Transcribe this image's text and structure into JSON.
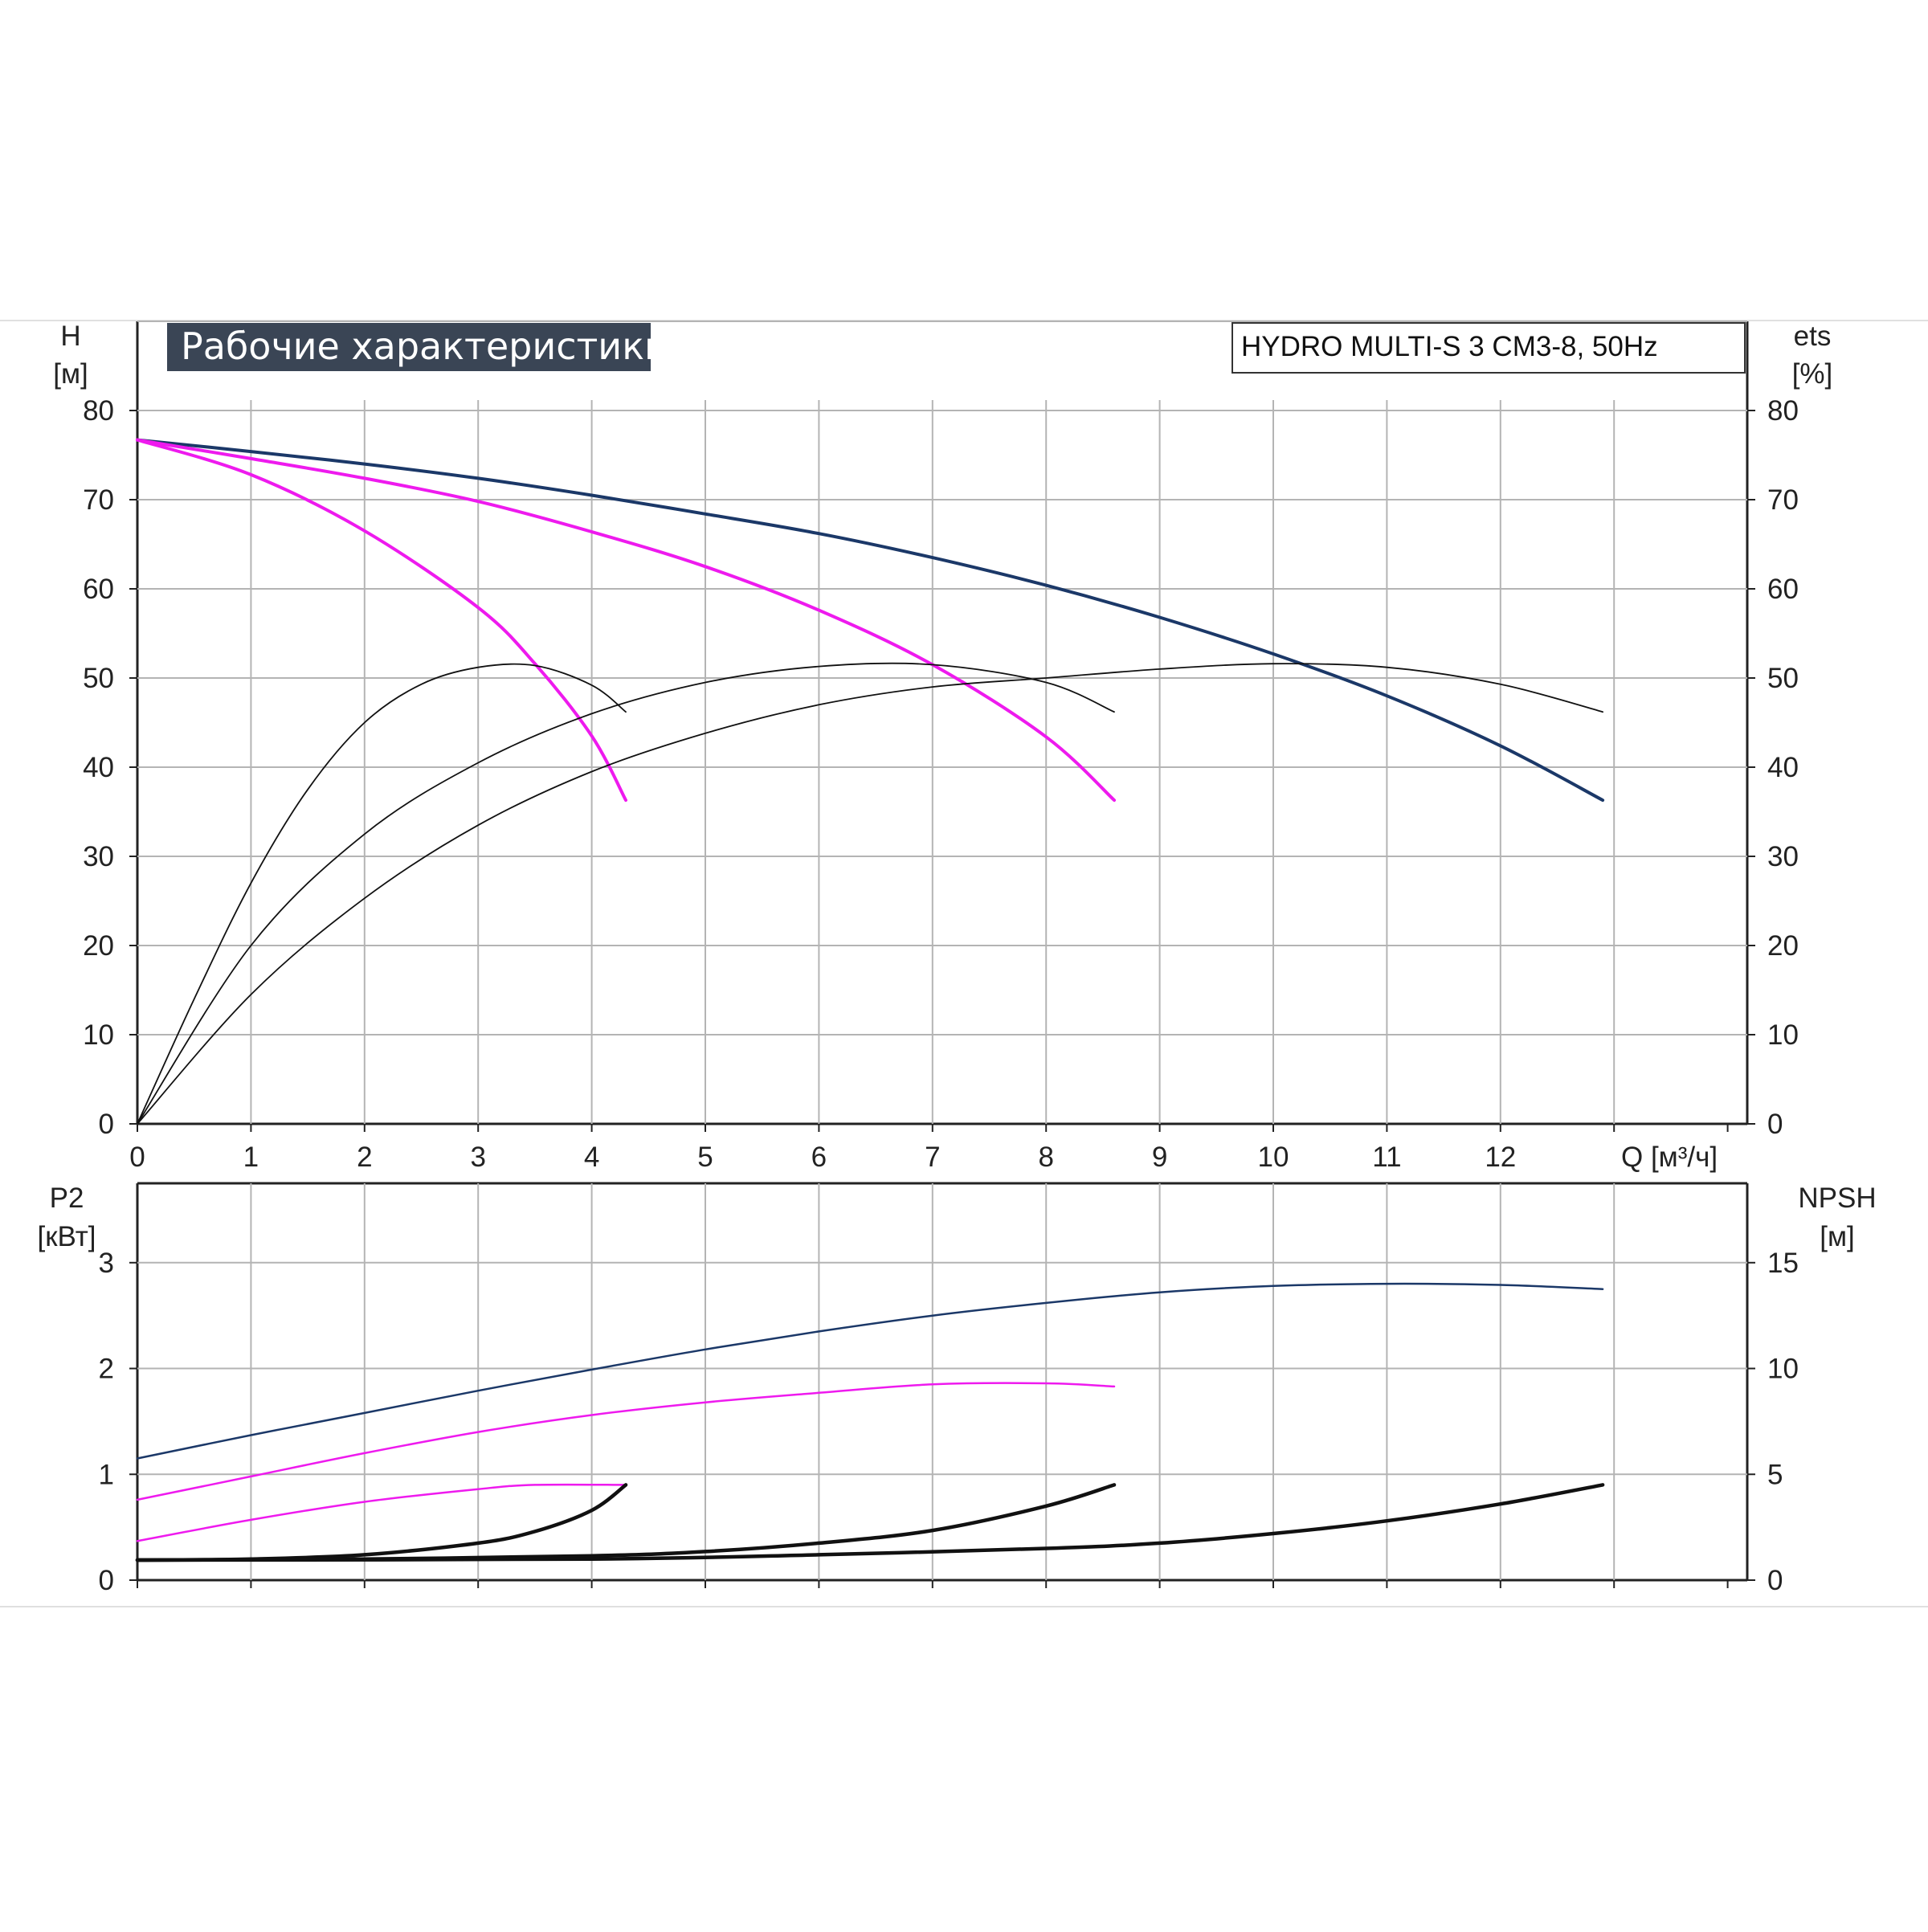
{
  "header": {
    "title": "Рабочие характеристики",
    "model": "HYDRO MULTI-S 3 CM3-8, 50Hz"
  },
  "colors": {
    "title_bg": "#3a4555",
    "navy": "#1b3868",
    "magenta": "#ee1aee",
    "black": "#111111",
    "grid": "#b4b4b4"
  },
  "chart_data": [
    {
      "id": "performance",
      "type": "line",
      "title": "Рабочие характеристики",
      "xlabel": "Q [м³/ч]",
      "ylabel": "H",
      "ylabel_unit": "[м]",
      "y2label": "ets",
      "y2label_unit": "[%]",
      "xlim": [
        0,
        14.1
      ],
      "ylim": [
        0,
        90
      ],
      "y2lim": [
        0,
        90
      ],
      "x_ticks": [
        0,
        1,
        2,
        3,
        4,
        5,
        6,
        7,
        8,
        9,
        10,
        11,
        12
      ],
      "y_ticks": [
        0,
        10,
        20,
        30,
        40,
        50,
        60,
        70,
        80
      ],
      "y2_ticks": [
        0,
        10,
        20,
        30,
        40,
        50,
        60,
        70,
        80
      ],
      "grid": true,
      "series": [
        {
          "color": "navy",
          "width": 4,
          "axis": "H",
          "points": [
            [
              0,
              76.7
            ],
            [
              1,
              75.4
            ],
            [
              2,
              74.0
            ],
            [
              3,
              72.4
            ],
            [
              4,
              70.5
            ],
            [
              5,
              68.4
            ],
            [
              6,
              66.2
            ],
            [
              7,
              63.5
            ],
            [
              8,
              60.4
            ],
            [
              9,
              56.8
            ],
            [
              10,
              52.7
            ],
            [
              11,
              48.0
            ],
            [
              12,
              42.4
            ],
            [
              12.9,
              36.3
            ]
          ]
        },
        {
          "color": "magenta",
          "width": 4,
          "axis": "H",
          "points": [
            [
              0,
              76.7
            ],
            [
              1,
              74.6
            ],
            [
              2,
              72.4
            ],
            [
              3,
              69.8
            ],
            [
              4,
              66.4
            ],
            [
              5,
              62.5
            ],
            [
              6,
              57.6
            ],
            [
              7,
              51.5
            ],
            [
              8,
              43.4
            ],
            [
              8.6,
              36.3
            ]
          ]
        },
        {
          "color": "magenta",
          "width": 4,
          "axis": "H",
          "points": [
            [
              0,
              76.7
            ],
            [
              1,
              72.8
            ],
            [
              2,
              66.5
            ],
            [
              3,
              57.9
            ],
            [
              3.5,
              51.6
            ],
            [
              4,
              43.5
            ],
            [
              4.3,
              36.3
            ]
          ]
        },
        {
          "color": "black",
          "width": 1.8,
          "axis": "ets",
          "points": [
            [
              0,
              0
            ],
            [
              0.5,
              14
            ],
            [
              1,
              27
            ],
            [
              1.5,
              37.5
            ],
            [
              2,
              45
            ],
            [
              2.5,
              49.3
            ],
            [
              3,
              51.2
            ],
            [
              3.5,
              51.4
            ],
            [
              4,
              49.2
            ],
            [
              4.3,
              46.2
            ]
          ]
        },
        {
          "color": "black",
          "width": 1.8,
          "axis": "ets",
          "points": [
            [
              0,
              0
            ],
            [
              1,
              20
            ],
            [
              2,
              32.5
            ],
            [
              3,
              40.5
            ],
            [
              4,
              46.0
            ],
            [
              5,
              49.5
            ],
            [
              6,
              51.3
            ],
            [
              7,
              51.5
            ],
            [
              8,
              49.5
            ],
            [
              8.6,
              46.2
            ]
          ]
        },
        {
          "color": "black",
          "width": 1.8,
          "axis": "ets",
          "points": [
            [
              0,
              0
            ],
            [
              1,
              14.5
            ],
            [
              2,
              25.3
            ],
            [
              3,
              33.5
            ],
            [
              4,
              39.5
            ],
            [
              5,
              43.8
            ],
            [
              6,
              47.0
            ],
            [
              7,
              49.0
            ],
            [
              8,
              50.0
            ],
            [
              9,
              51.0
            ],
            [
              10,
              51.6
            ],
            [
              11,
              51.2
            ],
            [
              12,
              49.3
            ],
            [
              12.9,
              46.2
            ]
          ]
        }
      ]
    },
    {
      "id": "power-npsh",
      "type": "line",
      "ylabel": "P2",
      "ylabel_unit": "[кВт]",
      "y2label": "NPSH",
      "y2label_unit": "[м]",
      "xlim": [
        0,
        14.1
      ],
      "ylim": [
        0,
        3.75
      ],
      "y2lim": [
        0,
        18.75
      ],
      "x_ticks": [
        0,
        1,
        2,
        3,
        4,
        5,
        6,
        7,
        8,
        9,
        10,
        11,
        12
      ],
      "y_ticks": [
        0,
        1,
        2,
        3
      ],
      "y2_ticks": [
        0,
        5,
        10,
        15
      ],
      "grid": true,
      "series": [
        {
          "color": "navy",
          "width": 2.5,
          "axis": "P2",
          "points": [
            [
              0,
              1.15
            ],
            [
              1,
              1.37
            ],
            [
              2,
              1.58
            ],
            [
              3,
              1.79
            ],
            [
              4,
              1.99
            ],
            [
              5,
              2.18
            ],
            [
              6,
              2.35
            ],
            [
              7,
              2.5
            ],
            [
              8,
              2.62
            ],
            [
              9,
              2.72
            ],
            [
              10,
              2.78
            ],
            [
              11,
              2.8
            ],
            [
              12,
              2.79
            ],
            [
              12.9,
              2.75
            ]
          ]
        },
        {
          "color": "magenta",
          "width": 2.5,
          "axis": "P2",
          "points": [
            [
              0,
              0.76
            ],
            [
              1,
              0.98
            ],
            [
              2,
              1.2
            ],
            [
              3,
              1.4
            ],
            [
              4,
              1.56
            ],
            [
              5,
              1.68
            ],
            [
              6,
              1.77
            ],
            [
              7,
              1.85
            ],
            [
              8,
              1.86
            ],
            [
              8.6,
              1.83
            ]
          ]
        },
        {
          "color": "magenta",
          "width": 2.5,
          "axis": "P2",
          "points": [
            [
              0,
              0.37
            ],
            [
              1,
              0.57
            ],
            [
              2,
              0.74
            ],
            [
              3,
              0.86
            ],
            [
              3.5,
              0.9
            ],
            [
              4.3,
              0.9
            ]
          ]
        },
        {
          "color": "black",
          "width": 4.5,
          "axis": "NPSH",
          "points": [
            [
              0,
              0.95
            ],
            [
              1,
              1.0
            ],
            [
              2,
              1.2
            ],
            [
              3,
              1.75
            ],
            [
              3.5,
              2.3
            ],
            [
              4,
              3.3
            ],
            [
              4.3,
              4.5
            ]
          ]
        },
        {
          "color": "black",
          "width": 4.5,
          "axis": "NPSH",
          "points": [
            [
              0,
              0.95
            ],
            [
              2,
              1.0
            ],
            [
              4,
              1.15
            ],
            [
              5,
              1.35
            ],
            [
              6,
              1.75
            ],
            [
              7,
              2.35
            ],
            [
              8,
              3.5
            ],
            [
              8.6,
              4.5
            ]
          ]
        },
        {
          "color": "black",
          "width": 4.5,
          "axis": "NPSH",
          "points": [
            [
              0,
              0.95
            ],
            [
              4,
              1.0
            ],
            [
              6,
              1.2
            ],
            [
              8,
              1.5
            ],
            [
              9,
              1.75
            ],
            [
              10,
              2.2
            ],
            [
              11,
              2.8
            ],
            [
              12,
              3.6
            ],
            [
              12.9,
              4.5
            ]
          ]
        }
      ]
    }
  ]
}
